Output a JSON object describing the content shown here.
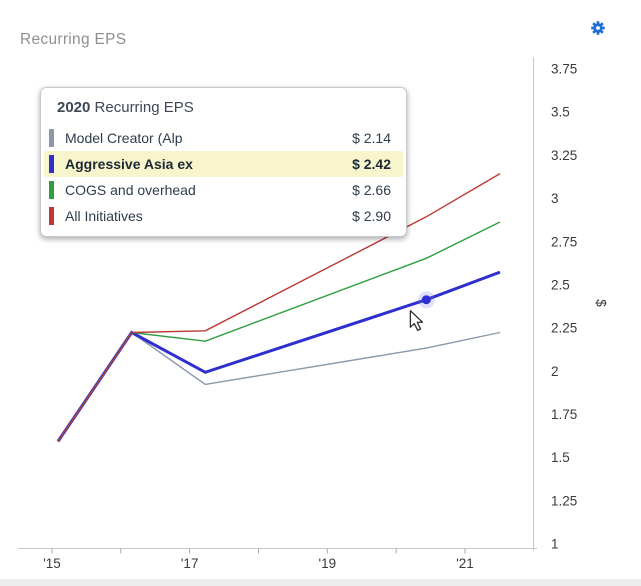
{
  "panel": {
    "title": "Recurring EPS"
  },
  "tooltip": {
    "year": "2020",
    "title": "Recurring EPS",
    "highlight_color": "#f8f5cd",
    "rows": [
      {
        "label": "Model Creator (Alp",
        "value": "$ 2.14",
        "color": "#8b97ab",
        "highlighted": false
      },
      {
        "label": "Aggressive Asia ex",
        "value": "$ 2.42",
        "color": "#2f2fd0",
        "highlighted": true
      },
      {
        "label": "COGS and overhead",
        "value": "$ 2.66",
        "color": "#2f9e41",
        "highlighted": false
      },
      {
        "label": "All Initiatives",
        "value": "$ 2.90",
        "color": "#bb3a34",
        "highlighted": false
      }
    ]
  },
  "chart_data": {
    "type": "line",
    "title": "Recurring EPS",
    "ylabel": "$",
    "ylim": [
      1,
      3.75
    ],
    "y_axis_position": "right",
    "grid": false,
    "y_tick_labels": [
      "1",
      "1.25",
      "1.5",
      "1.75",
      "2",
      "2.25",
      "2.5",
      "2.75",
      "3",
      "3.25",
      "3.5",
      "3.75"
    ],
    "x": [
      2015,
      2016,
      2017,
      2020,
      2021
    ],
    "x_axis_years": [
      2015,
      2016,
      2017,
      2018,
      2019,
      2020,
      2021
    ],
    "x_tick_labels": [
      {
        "year": 2015,
        "label": "'15"
      },
      {
        "year": 2017,
        "label": "'17"
      },
      {
        "year": 2019,
        "label": "'19"
      },
      {
        "year": 2021,
        "label": "'21"
      }
    ],
    "series": [
      {
        "name": "Model Creator (Alp",
        "color": "#8b97ab",
        "stroke_width": 1.4,
        "values": [
          1.6,
          2.23,
          1.93,
          2.14,
          2.23
        ]
      },
      {
        "name": "Aggressive Asia ex",
        "color": "#2f2fd0",
        "stroke_width": 3.0,
        "values": [
          1.6,
          2.23,
          2.0,
          2.42,
          2.58
        ]
      },
      {
        "name": "COGS and overhead",
        "color": "#2f9e41",
        "stroke_width": 1.4,
        "values": [
          1.6,
          2.23,
          2.18,
          2.66,
          2.87
        ]
      },
      {
        "name": "All Initiatives",
        "color": "#bb3a34",
        "stroke_width": 1.4,
        "values": [
          1.6,
          2.23,
          2.24,
          2.9,
          3.15
        ]
      }
    ],
    "highlight_point": {
      "series": "Aggressive Asia ex",
      "x": 2020,
      "value": 2.42
    }
  }
}
